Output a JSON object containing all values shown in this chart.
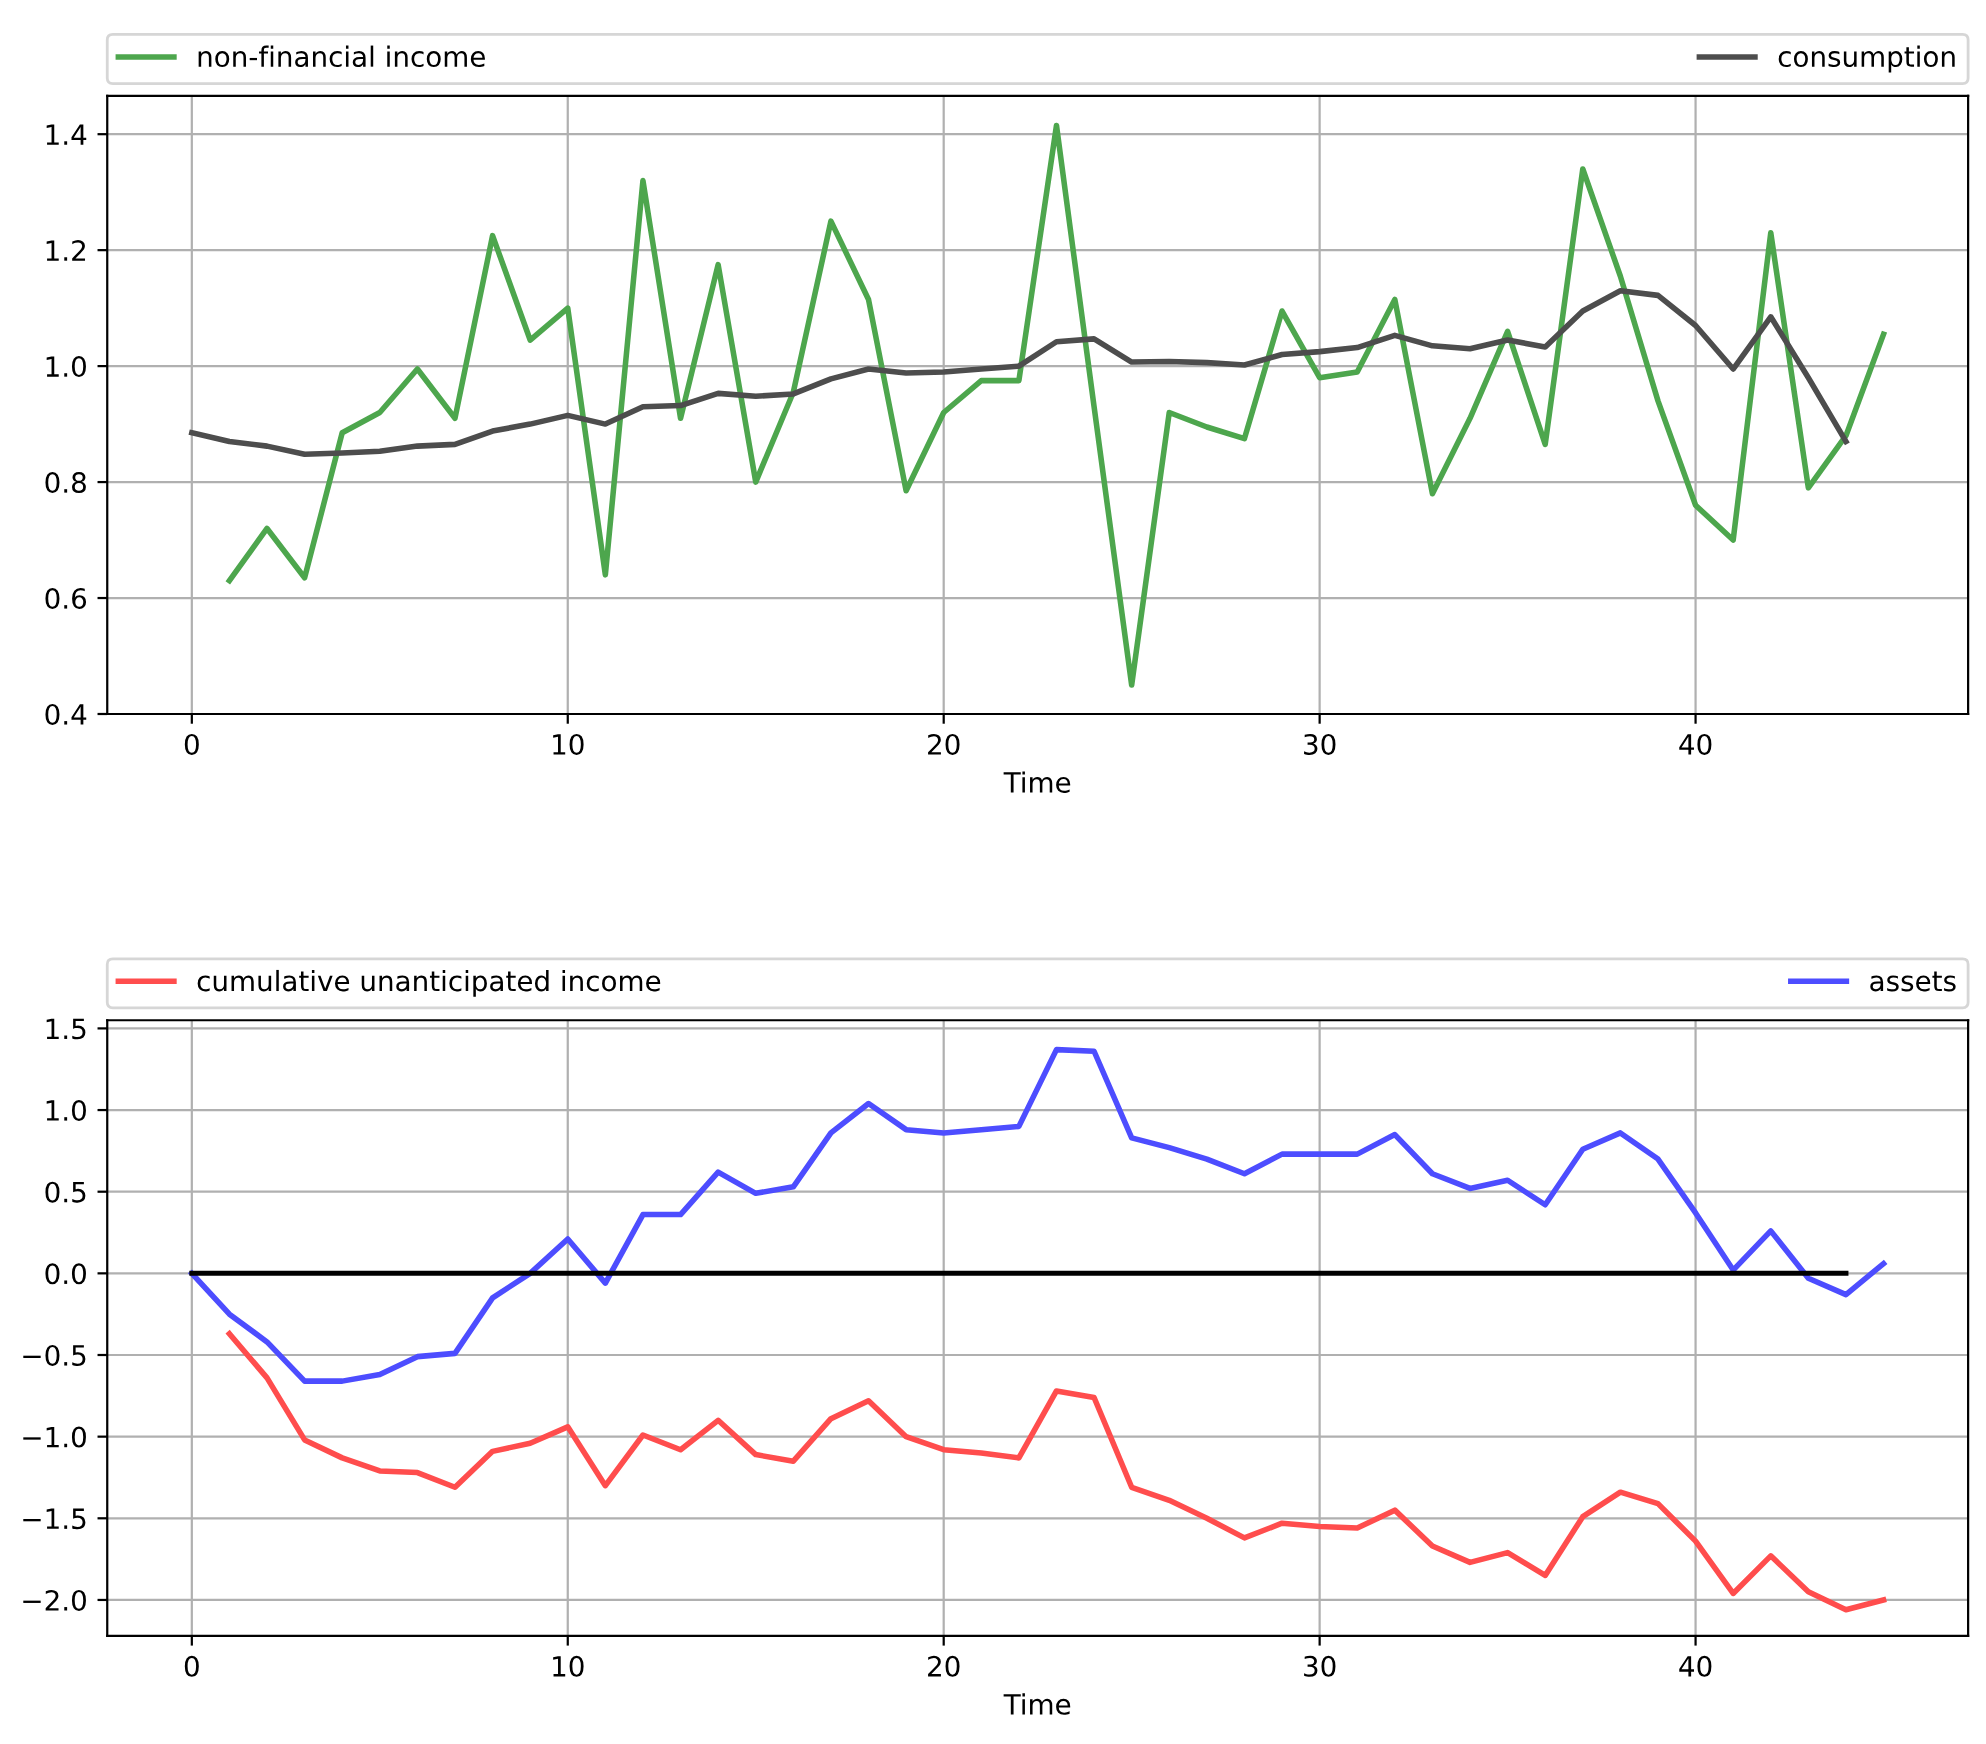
{
  "chart_data": [
    {
      "type": "line",
      "xlabel": "Time",
      "xlim": [
        -2.25,
        47.25
      ],
      "ylim": [
        0.4,
        1.466
      ],
      "xticks": [
        0,
        10,
        20,
        30,
        40
      ],
      "yticks": [
        0.4,
        0.6,
        0.8,
        {
          "value": 1,
          "label": "1.0"
        },
        1.2,
        1.4
      ],
      "grid": true,
      "legend": "top",
      "line_style": "solid",
      "marker": "none",
      "series": [
        {
          "name": "non-financial income",
          "color": "#4da64d",
          "x": [
            1,
            2,
            3,
            4,
            5,
            6,
            7,
            8,
            9,
            10,
            11,
            12,
            13,
            14,
            15,
            16,
            17,
            18,
            19,
            20,
            21,
            22,
            23,
            24,
            25,
            26,
            27,
            28,
            29,
            30,
            31,
            32,
            33,
            34,
            35,
            36,
            37,
            38,
            39,
            40,
            41,
            42,
            43,
            44,
            45
          ],
          "values": [
            0.63,
            0.72,
            0.635,
            0.885,
            0.92,
            0.995,
            0.91,
            1.225,
            1.045,
            1.1,
            0.64,
            1.32,
            0.91,
            1.175,
            0.8,
            0.955,
            1.25,
            1.115,
            0.785,
            0.92,
            0.975,
            0.975,
            1.415,
            0.93,
            0.45,
            0.92,
            0.895,
            0.875,
            1.095,
            0.98,
            0.99,
            1.115,
            0.78,
            0.91,
            1.06,
            0.865,
            1.34,
            1.155,
            0.94,
            0.76,
            0.7,
            1.23,
            0.79,
            0.88,
            1.055
          ]
        },
        {
          "name": "consumption",
          "color": "#4d4d4d",
          "x": [
            0,
            1,
            2,
            3,
            4,
            5,
            6,
            7,
            8,
            9,
            10,
            11,
            12,
            13,
            14,
            15,
            16,
            17,
            18,
            19,
            20,
            21,
            22,
            23,
            24,
            25,
            26,
            27,
            28,
            29,
            30,
            31,
            32,
            33,
            34,
            35,
            36,
            37,
            38,
            39,
            40,
            41,
            42,
            43,
            44
          ],
          "values": [
            0.885,
            0.87,
            0.862,
            0.848,
            0.85,
            0.853,
            0.862,
            0.865,
            0.888,
            0.9,
            0.915,
            0.9,
            0.93,
            0.932,
            0.953,
            0.948,
            0.952,
            0.978,
            0.995,
            0.988,
            0.99,
            0.995,
            1.0,
            1.042,
            1.047,
            1.007,
            1.008,
            1.006,
            1.002,
            1.02,
            1.025,
            1.032,
            1.053,
            1.035,
            1.03,
            1.045,
            1.033,
            1.095,
            1.13,
            1.122,
            1.07,
            0.995,
            1.085,
            0.98,
            0.87
          ]
        }
      ]
    },
    {
      "type": "line",
      "xlabel": "Time",
      "xlim": [
        -2.25,
        47.25
      ],
      "ylim": [
        -2.22,
        1.55
      ],
      "xticks": [
        0,
        10,
        20,
        30,
        40
      ],
      "yticks": [
        {
          "value": -2,
          "label": "−2.0"
        },
        {
          "value": -1.5,
          "label": "−1.5"
        },
        {
          "value": -1,
          "label": "−1.0"
        },
        {
          "value": -0.5,
          "label": "−0.5"
        },
        {
          "value": 0,
          "label": "0.0"
        },
        0.5,
        {
          "value": 1,
          "label": "1.0"
        },
        1.5
      ],
      "grid": true,
      "legend": "top",
      "line_style": "solid",
      "marker": "none",
      "series": [
        {
          "name": "cumulative unanticipated income",
          "color": "#ff4d4d",
          "x": [
            1,
            2,
            3,
            4,
            5,
            6,
            7,
            8,
            9,
            10,
            11,
            12,
            13,
            14,
            15,
            16,
            17,
            18,
            19,
            20,
            21,
            22,
            23,
            24,
            25,
            26,
            27,
            28,
            29,
            30,
            31,
            32,
            33,
            34,
            35,
            36,
            37,
            38,
            39,
            40,
            41,
            42,
            43,
            44,
            45
          ],
          "values": [
            -0.37,
            -0.64,
            -1.02,
            -1.13,
            -1.21,
            -1.22,
            -1.31,
            -1.09,
            -1.04,
            -0.94,
            -1.3,
            -0.99,
            -1.08,
            -0.9,
            -1.11,
            -1.15,
            -0.89,
            -0.78,
            -1.0,
            -1.08,
            -1.1,
            -1.13,
            -0.72,
            -0.76,
            -1.31,
            -1.39,
            -1.5,
            -1.62,
            -1.53,
            -1.55,
            -1.56,
            -1.45,
            -1.67,
            -1.77,
            -1.71,
            -1.85,
            -1.49,
            -1.34,
            -1.41,
            -1.64,
            -1.96,
            -1.73,
            -1.95,
            -2.06,
            -2.0
          ]
        },
        {
          "name": "assets",
          "color": "#4d4dff",
          "x": [
            0,
            1,
            2,
            3,
            4,
            5,
            6,
            7,
            8,
            9,
            10,
            11,
            12,
            13,
            14,
            15,
            16,
            17,
            18,
            19,
            20,
            21,
            22,
            23,
            24,
            25,
            26,
            27,
            28,
            29,
            30,
            31,
            32,
            33,
            34,
            35,
            36,
            37,
            38,
            39,
            40,
            41,
            42,
            43,
            44,
            45
          ],
          "values": [
            0,
            -0.25,
            -0.42,
            -0.66,
            -0.66,
            -0.62,
            -0.51,
            -0.49,
            -0.15,
            0.0,
            0.21,
            -0.06,
            0.36,
            0.36,
            0.62,
            0.49,
            0.53,
            0.86,
            1.04,
            0.88,
            0.86,
            0.88,
            0.9,
            1.37,
            1.36,
            0.83,
            0.77,
            0.7,
            0.61,
            0.73,
            0.73,
            0.73,
            0.85,
            0.61,
            0.52,
            0.57,
            0.42,
            0.76,
            0.86,
            0.7,
            0.37,
            0.02,
            0.26,
            -0.03,
            -0.13,
            0.06
          ]
        },
        {
          "color": "#000000",
          "x": [
            0,
            44
          ],
          "values": [
            0,
            0
          ]
        }
      ]
    }
  ]
}
